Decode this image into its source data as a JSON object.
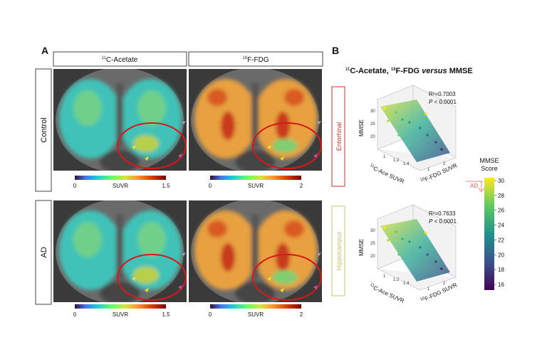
{
  "panel_a": {
    "label": "A",
    "columns": [
      {
        "sup": "11",
        "name": "C-Acetate"
      },
      {
        "sup": "18",
        "name": "F-FDG"
      }
    ],
    "rows": [
      {
        "label": "Control",
        "colorbars": [
          {
            "min": "0",
            "label": "SUVR",
            "max": "1.5"
          },
          {
            "min": "0",
            "label": "SUVR",
            "max": "2"
          }
        ]
      },
      {
        "label": "AD",
        "colorbars": [
          {
            "min": "0",
            "label": "SUVR",
            "max": "1.5"
          },
          {
            "min": "0",
            "label": "SUVR",
            "max": "2"
          }
        ]
      }
    ]
  },
  "panel_b": {
    "label": "B",
    "title": {
      "sup1": "11",
      "part1": "C-Acetate, ",
      "sup2": "18",
      "part2": "F-FDG ",
      "italic": "versus",
      "part3": " MMSE"
    },
    "plots": [
      {
        "region": "Entorhinal",
        "r2": "R²=0.7003",
        "p": "P",
        "p_rest": " < 0.0001",
        "z_label": "MMSE",
        "x_sup": "11",
        "x_label": "C-Ace SUVR",
        "y_sup": "18",
        "y_label": "F-FDG SUVR",
        "z_ticks": [
          "30",
          "25",
          "20"
        ],
        "x_ticks": [
          "1",
          "1.2",
          "1.4"
        ],
        "y_ticks": [
          "1",
          "2"
        ]
      },
      {
        "region": "Hippocampus",
        "r2": "R²=0.7633",
        "p": "P",
        "p_rest": " < 0.0001",
        "z_label": "MMSE",
        "x_sup": "11",
        "x_label": "C-Ace SUVR",
        "y_sup": "18",
        "y_label": "F-FDG SUVR",
        "z_ticks": [
          "30",
          "25",
          "20"
        ],
        "x_ticks": [
          "1",
          "1.2",
          "1.4"
        ],
        "y_ticks": [
          "1",
          "2"
        ]
      }
    ],
    "colorbar": {
      "title": [
        "MMSE",
        "Score"
      ],
      "ticks": [
        "30",
        "28",
        "26",
        "24",
        "22",
        "20",
        "18",
        "16"
      ]
    },
    "marker": "AD"
  }
}
